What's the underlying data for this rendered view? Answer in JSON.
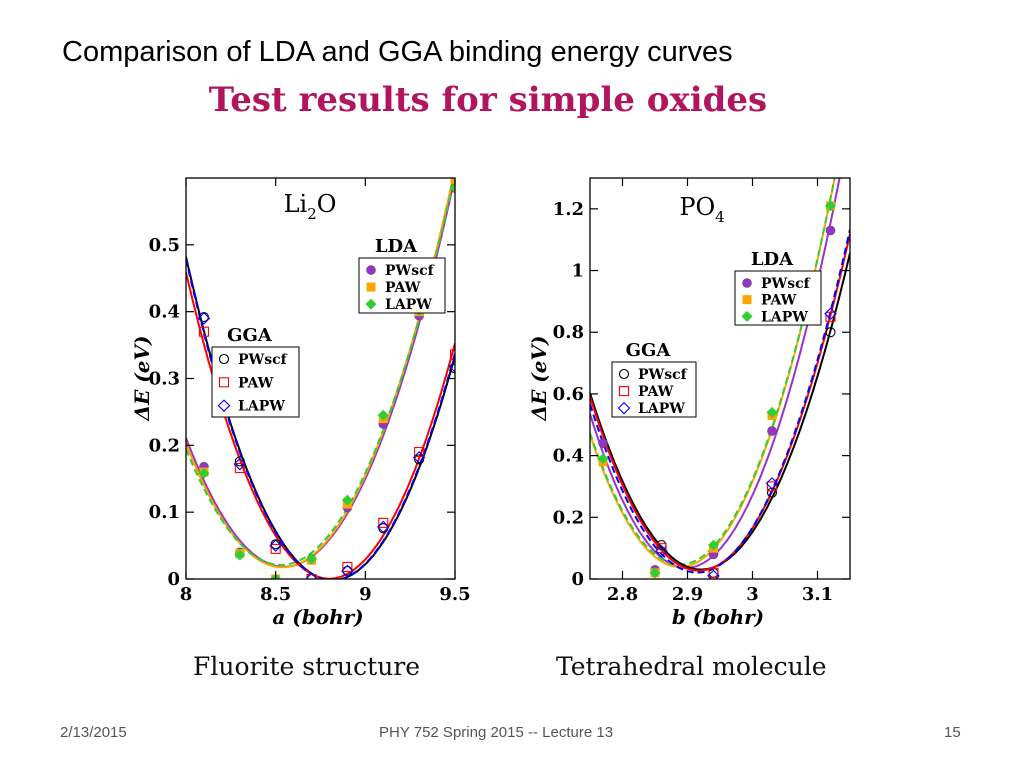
{
  "slide": {
    "title": "Comparison of LDA and GGA binding energy curves",
    "subtitle": "Test results for simple oxides"
  },
  "footer": {
    "date": "2/13/2015",
    "course": "PHY 752  Spring 2015 -- Lecture 13",
    "page": "15"
  },
  "colors": {
    "subtitle": "#b0155e",
    "pwscf_lda": "#9932cc",
    "paw_lda": "#ffa500",
    "lapw_lda": "#32cd32",
    "pwscf_gga": "#000000",
    "paw_gga": "#ff0000",
    "lapw_gga": "#0000ff"
  },
  "chart_data": [
    {
      "type": "line",
      "id": "li2o",
      "caption": "Fluorite structure",
      "label_main": "Li",
      "label_sub": "2",
      "label_tail": "O",
      "xlabel": "a (bohr)",
      "ylabel": "ΔE (eV)",
      "xlim": [
        8.0,
        9.5
      ],
      "ylim": [
        0,
        0.6
      ],
      "xticks": [
        8,
        8.5,
        9,
        9.5
      ],
      "xtick_labels": [
        "8",
        "8.5",
        "9",
        "9.5"
      ],
      "yticks": [
        0,
        0.1,
        0.2,
        0.3,
        0.4,
        0.5
      ],
      "ytick_labels": [
        "0",
        "0.1",
        "0.2",
        "0.3",
        "0.4",
        "0.5"
      ],
      "legend_lda": {
        "title": "LDA",
        "entries": [
          "PWscf",
          "PAW",
          "LAPW"
        ],
        "placement": "upper-right"
      },
      "legend_gga": {
        "title": "GGA",
        "entries": [
          "PWscf",
          "PAW",
          "LAPW"
        ],
        "placement": "middle-left"
      },
      "series": [
        {
          "group": "LDA",
          "name": "PWscf",
          "marker": "filled-circle",
          "color": "#9932cc",
          "x": [
            8.1,
            8.3,
            8.5,
            8.7,
            8.9,
            9.1,
            9.3,
            9.5
          ],
          "y": [
            0.168,
            0.04,
            0.0,
            0.03,
            0.107,
            0.232,
            0.394,
            0.585
          ]
        },
        {
          "group": "LDA",
          "name": "PAW",
          "marker": "filled-square",
          "color": "#ffa500",
          "x": [
            8.1,
            8.3,
            8.5,
            8.7,
            8.9,
            9.1,
            9.3,
            9.5
          ],
          "y": [
            0.16,
            0.038,
            0.0,
            0.028,
            0.112,
            0.24,
            0.4,
            0.598
          ]
        },
        {
          "group": "LDA",
          "name": "LAPW",
          "marker": "filled-diamond",
          "color": "#32cd32",
          "x": [
            8.1,
            8.3,
            8.5,
            8.7,
            8.9,
            9.1,
            9.3,
            9.5
          ],
          "y": [
            0.158,
            0.036,
            0.0,
            0.03,
            0.118,
            0.245,
            0.402,
            0.585
          ]
        },
        {
          "group": "GGA",
          "name": "PWscf",
          "marker": "open-circle",
          "color": "#000000",
          "x": [
            8.1,
            8.3,
            8.5,
            8.7,
            8.9,
            9.1,
            9.3,
            9.5
          ],
          "y": [
            0.392,
            0.176,
            0.052,
            0.0,
            0.012,
            0.076,
            0.179,
            0.315
          ]
        },
        {
          "group": "GGA",
          "name": "PAW",
          "marker": "open-square",
          "color": "#ff0000",
          "x": [
            8.1,
            8.3,
            8.5,
            8.7,
            8.9,
            9.1,
            9.3,
            9.5
          ],
          "y": [
            0.37,
            0.166,
            0.045,
            0.0,
            0.018,
            0.084,
            0.19,
            0.336
          ]
        },
        {
          "group": "GGA",
          "name": "LAPW",
          "marker": "open-diamond",
          "color": "#0000ff",
          "x": [
            8.1,
            8.3,
            8.5,
            8.7,
            8.9,
            9.1,
            9.3,
            9.5
          ],
          "y": [
            0.39,
            0.172,
            0.05,
            0.0,
            0.012,
            0.078,
            0.182,
            0.318
          ]
        }
      ]
    },
    {
      "type": "line",
      "id": "po4",
      "caption": "Tetrahedral molecule",
      "label_main": "PO",
      "label_sub": "4",
      "label_tail": "",
      "xlabel": "b (bohr)",
      "ylabel": "ΔE (eV)",
      "xlim": [
        2.75,
        3.15
      ],
      "ylim": [
        0,
        1.3
      ],
      "xticks": [
        2.8,
        2.9,
        3.0,
        3.1
      ],
      "xtick_labels": [
        "2.8",
        "2.9",
        "3",
        "3.1"
      ],
      "yticks": [
        0,
        0.2,
        0.4,
        0.6,
        0.8,
        1.0,
        1.2
      ],
      "ytick_labels": [
        "0",
        "0.2",
        "0.4",
        "0.6",
        "0.8",
        "1",
        "1.2"
      ],
      "legend_lda": {
        "title": "LDA",
        "entries": [
          "PWscf",
          "PAW",
          "LAPW"
        ],
        "placement": "upper-right"
      },
      "legend_gga": {
        "title": "GGA",
        "entries": [
          "PWscf",
          "PAW",
          "LAPW"
        ],
        "placement": "middle-left"
      },
      "series": [
        {
          "group": "LDA",
          "name": "PWscf",
          "marker": "filled-circle",
          "color": "#9932cc",
          "x": [
            2.77,
            2.85,
            2.94,
            3.03,
            3.12
          ],
          "y": [
            0.44,
            0.03,
            0.08,
            0.48,
            1.13
          ]
        },
        {
          "group": "LDA",
          "name": "PAW",
          "marker": "filled-square",
          "color": "#ffa500",
          "x": [
            2.77,
            2.85,
            2.94,
            3.03,
            3.12
          ],
          "y": [
            0.38,
            0.02,
            0.1,
            0.53,
            1.21
          ]
        },
        {
          "group": "LDA",
          "name": "LAPW",
          "marker": "filled-diamond",
          "color": "#32cd32",
          "x": [
            2.77,
            2.85,
            2.94,
            3.03,
            3.12
          ],
          "y": [
            0.39,
            0.02,
            0.11,
            0.54,
            1.21
          ]
        },
        {
          "group": "GGA",
          "name": "PWscf",
          "marker": "open-circle",
          "color": "#000000",
          "x": [
            2.86,
            2.94,
            3.03,
            3.12
          ],
          "y": [
            0.11,
            0.02,
            0.28,
            0.8
          ]
        },
        {
          "group": "GGA",
          "name": "PAW",
          "marker": "open-square",
          "color": "#ff0000",
          "x": [
            2.86,
            2.94,
            3.03,
            3.12
          ],
          "y": [
            0.1,
            0.02,
            0.3,
            0.85
          ]
        },
        {
          "group": "GGA",
          "name": "LAPW",
          "marker": "open-diamond",
          "color": "#0000ff",
          "x": [
            2.86,
            2.94,
            3.03,
            3.12
          ],
          "y": [
            0.09,
            0.01,
            0.31,
            0.86
          ]
        }
      ]
    }
  ]
}
